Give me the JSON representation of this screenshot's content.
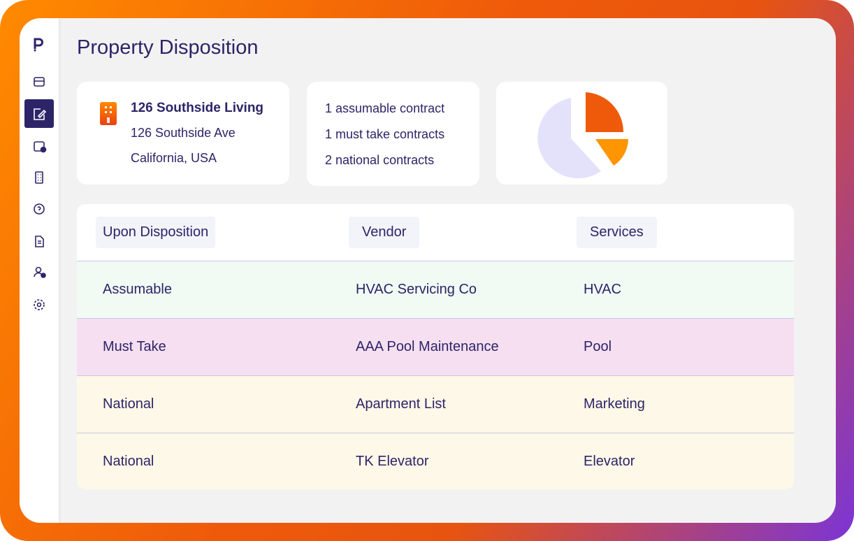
{
  "header": {
    "title": "Property Disposition"
  },
  "property": {
    "name": "126 Southside Living",
    "address": "126 Southside Ave",
    "location": "California, USA"
  },
  "contracts": [
    "1 assumable contract",
    "1 must take contracts",
    "2 national contracts"
  ],
  "table": {
    "columns": [
      "Upon Disposition",
      "Vendor",
      "Services"
    ],
    "rows": [
      [
        "Assumable",
        "HVAC Servicing Co",
        "HVAC"
      ],
      [
        "Must Take",
        "AAA Pool Maintenance",
        "Pool"
      ],
      [
        "National",
        "Apartment List",
        "Marketing"
      ],
      [
        "National",
        "TK Elevator",
        "Elevator"
      ]
    ]
  }
}
